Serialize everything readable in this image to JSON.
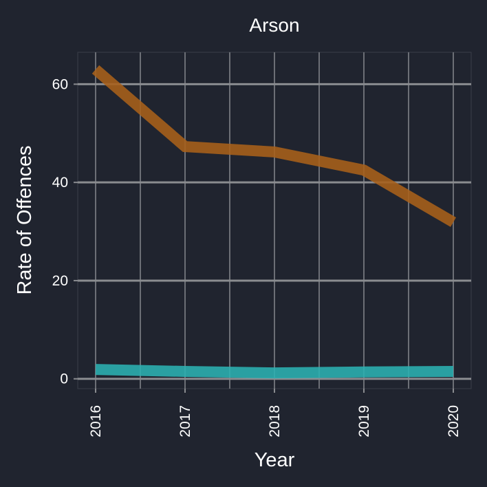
{
  "chart_data": {
    "type": "line",
    "title": "Arson",
    "xlabel": "Year",
    "ylabel": "Rate of Offences",
    "x": [
      2016,
      2017,
      2018,
      2019,
      2020
    ],
    "ylim": [
      -2,
      66.5
    ],
    "yticks": [
      0,
      20,
      40,
      60
    ],
    "grid": true,
    "legend": "none",
    "series": [
      {
        "values": [
          63,
          47.3,
          46.2,
          42.5,
          31.9
        ],
        "color": "#a8611a"
      },
      {
        "values": [
          1.9,
          1.5,
          1.2,
          1.4,
          1.5
        ],
        "color": "#2bb2b3"
      }
    ]
  }
}
